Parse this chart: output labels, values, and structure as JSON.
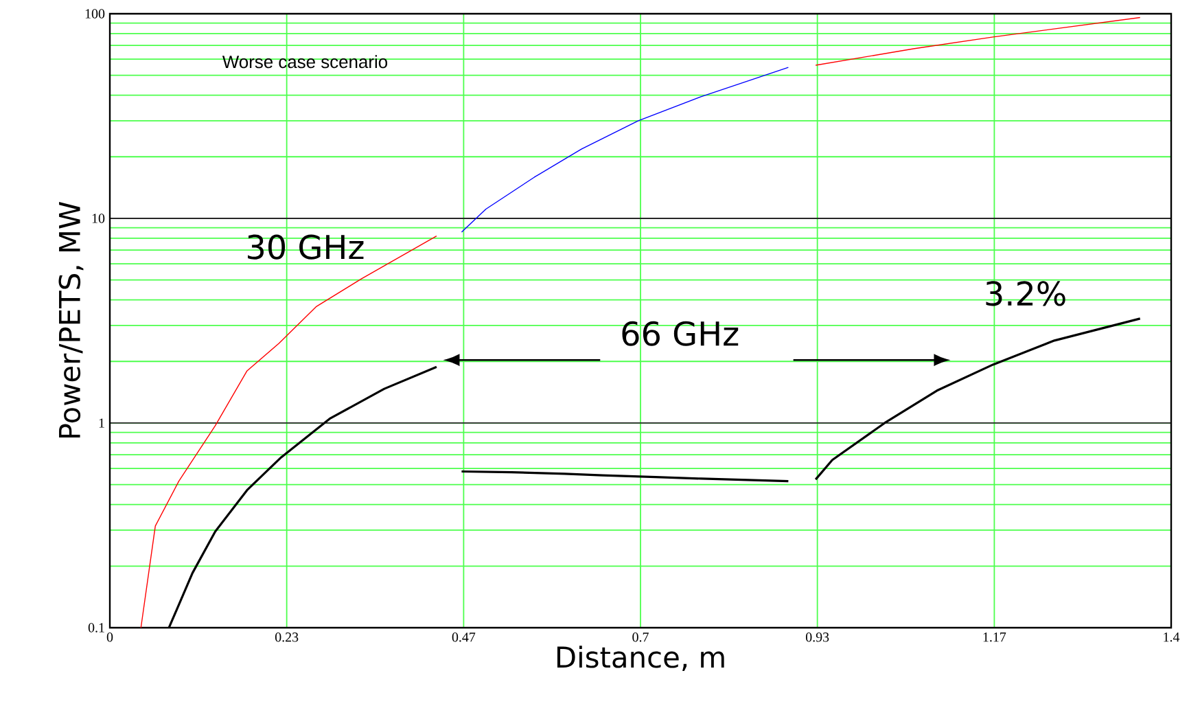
{
  "chart_data": {
    "type": "line",
    "xlabel": "Distance,  m",
    "ylabel": "Power/PETS, MW",
    "xlim": [
      0,
      1.4
    ],
    "ylim": [
      0.1,
      100
    ],
    "log": "y",
    "grid": true,
    "marker": "none",
    "line_style": "solid",
    "xticks": [
      0,
      {
        "value": 0.2333,
        "label": "0.23"
      },
      {
        "value": 0.4667,
        "label": "0.47"
      },
      {
        "value": 0.7,
        "label": "0.7"
      },
      {
        "value": 0.9333,
        "label": "0.93"
      },
      {
        "value": 1.1667,
        "label": "1.17"
      },
      1.4
    ],
    "yticks": [
      0.1,
      1,
      10,
      100
    ],
    "annotations": [
      "Worse case scenario",
      "30 GHz",
      "66 GHz",
      {
        "text": "3.2%",
        "x": 1.359,
        "y": 3.24
      }
    ],
    "series": [
      {
        "color": "#ff0000",
        "x": [
          0.041,
          0.06,
          0.091,
          0.139,
          0.181,
          0.223,
          0.272,
          0.332,
          0.431
        ],
        "values": [
          0.1,
          0.314,
          0.52,
          0.97,
          1.8,
          2.45,
          3.7,
          5.07,
          8.2
        ]
      },
      {
        "color": "#000000",
        "x": [
          0.078,
          0.109,
          0.139,
          0.181,
          0.226,
          0.29,
          0.362,
          0.431
        ],
        "values": [
          0.1,
          0.185,
          0.295,
          0.47,
          0.68,
          1.05,
          1.47,
          1.88
        ]
      },
      {
        "color": "#0000ff",
        "x": [
          0.464,
          0.496,
          0.56,
          0.622,
          0.697,
          0.779,
          0.895
        ],
        "values": [
          8.57,
          11.1,
          15.9,
          21.8,
          30,
          39.2,
          54.7
        ]
      },
      {
        "color": "#ff0000",
        "x": [
          0.931,
          1.06,
          1.165,
          1.359
        ],
        "values": [
          56,
          67.4,
          77,
          95.8
        ]
      },
      {
        "color": "#000000",
        "x": [
          0.464,
          0.53,
          0.6,
          0.65,
          0.72,
          0.78,
          0.895
        ],
        "values": [
          0.58,
          0.575,
          0.565,
          0.555,
          0.545,
          0.535,
          0.52
        ]
      },
      {
        "color": "#000000",
        "x": [
          0.931,
          0.953,
          1.022,
          1.091,
          1.165,
          1.246,
          1.359
        ],
        "values": [
          0.53,
          0.66,
          1.0,
          1.44,
          1.93,
          2.53,
          3.24
        ]
      }
    ]
  }
}
